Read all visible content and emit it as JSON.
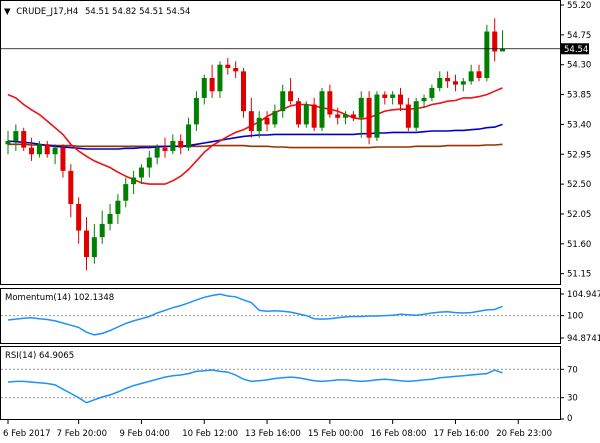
{
  "chart_data": {
    "type": "candlestick",
    "symbol_line": {
      "symbol": "CRUDE_J17,H4",
      "ohlc": "54.51 54.82 54.51 54.54"
    },
    "last_price": "54.54",
    "main": {
      "ylim": [
        51.1,
        55.2
      ],
      "y_ticks": [
        "55.20",
        "54.75",
        "54.30",
        "53.85",
        "53.40",
        "52.95",
        "52.50",
        "52.05",
        "51.60",
        "51.15"
      ],
      "candles": [
        [
          53.1,
          53.3,
          52.95,
          53.15
        ],
        [
          53.15,
          53.4,
          53.0,
          53.3
        ],
        [
          53.3,
          53.35,
          53.0,
          53.05
        ],
        [
          53.05,
          53.2,
          52.85,
          52.95
        ],
        [
          52.95,
          53.15,
          52.9,
          53.1
        ],
        [
          53.1,
          53.15,
          52.9,
          52.95
        ],
        [
          52.95,
          53.1,
          52.8,
          53.05
        ],
        [
          53.05,
          53.1,
          52.6,
          52.7
        ],
        [
          52.7,
          52.8,
          52.0,
          52.2
        ],
        [
          52.2,
          52.3,
          51.6,
          51.8
        ],
        [
          51.8,
          52.0,
          51.2,
          51.4
        ],
        [
          51.4,
          51.9,
          51.3,
          51.7
        ],
        [
          51.7,
          52.1,
          51.6,
          51.9
        ],
        [
          51.9,
          52.2,
          51.8,
          52.05
        ],
        [
          52.05,
          52.35,
          51.9,
          52.25
        ],
        [
          52.25,
          52.6,
          52.15,
          52.5
        ],
        [
          52.5,
          52.7,
          52.35,
          52.6
        ],
        [
          52.6,
          52.8,
          52.5,
          52.75
        ],
        [
          52.75,
          53.0,
          52.6,
          52.9
        ],
        [
          52.9,
          53.1,
          52.8,
          53.05
        ],
        [
          53.05,
          53.2,
          52.9,
          53.0
        ],
        [
          53.0,
          53.25,
          52.95,
          53.15
        ],
        [
          53.15,
          53.25,
          52.95,
          53.05
        ],
        [
          53.05,
          53.5,
          53.0,
          53.4
        ],
        [
          53.4,
          53.9,
          53.3,
          53.8
        ],
        [
          53.8,
          54.15,
          53.7,
          54.1
        ],
        [
          54.1,
          54.3,
          53.8,
          53.9
        ],
        [
          53.9,
          54.35,
          53.8,
          54.3
        ],
        [
          54.3,
          54.4,
          54.15,
          54.25
        ],
        [
          54.25,
          54.35,
          54.1,
          54.2
        ],
        [
          54.2,
          54.25,
          53.5,
          53.6
        ],
        [
          53.6,
          53.8,
          53.2,
          53.3
        ],
        [
          53.3,
          53.6,
          53.2,
          53.5
        ],
        [
          53.5,
          53.6,
          53.3,
          53.4
        ],
        [
          53.4,
          53.7,
          53.35,
          53.6
        ],
        [
          53.6,
          54.0,
          53.5,
          53.9
        ],
        [
          53.9,
          54.1,
          53.7,
          53.75
        ],
        [
          53.75,
          53.8,
          53.35,
          53.4
        ],
        [
          53.4,
          53.75,
          53.35,
          53.7
        ],
        [
          53.7,
          53.8,
          53.3,
          53.35
        ],
        [
          53.35,
          53.95,
          53.3,
          53.9
        ],
        [
          53.9,
          54.0,
          53.5,
          53.55
        ],
        [
          53.55,
          53.65,
          53.4,
          53.5
        ],
        [
          53.5,
          53.6,
          53.4,
          53.55
        ],
        [
          53.55,
          53.6,
          53.45,
          53.5
        ],
        [
          53.5,
          53.9,
          53.2,
          53.8
        ],
        [
          53.8,
          53.9,
          53.1,
          53.2
        ],
        [
          53.2,
          53.9,
          53.15,
          53.85
        ],
        [
          53.85,
          53.9,
          53.7,
          53.8
        ],
        [
          53.8,
          53.9,
          53.7,
          53.85
        ],
        [
          53.85,
          53.95,
          53.6,
          53.7
        ],
        [
          53.7,
          53.8,
          53.3,
          53.35
        ],
        [
          53.35,
          53.8,
          53.3,
          53.75
        ],
        [
          53.75,
          53.85,
          53.65,
          53.8
        ],
        [
          53.8,
          54.0,
          53.75,
          53.95
        ],
        [
          53.95,
          54.2,
          53.9,
          54.1
        ],
        [
          54.1,
          54.2,
          53.95,
          54.05
        ],
        [
          54.05,
          54.15,
          53.9,
          54.0
        ],
        [
          54.0,
          54.1,
          53.9,
          54.05
        ],
        [
          54.05,
          54.3,
          54.0,
          54.2
        ],
        [
          54.2,
          54.3,
          54.05,
          54.1
        ],
        [
          54.1,
          54.9,
          54.05,
          54.8
        ],
        [
          54.8,
          55.0,
          54.35,
          54.5
        ],
        [
          54.5,
          54.82,
          54.51,
          54.54
        ]
      ],
      "ma_red": [
        53.85,
        53.8,
        53.7,
        53.62,
        53.55,
        53.45,
        53.35,
        53.25,
        53.1,
        53.0,
        52.92,
        52.85,
        52.8,
        52.75,
        52.68,
        52.62,
        52.57,
        52.52,
        52.5,
        52.5,
        52.5,
        52.55,
        52.62,
        52.72,
        52.85,
        52.98,
        53.08,
        53.15,
        53.22,
        53.28,
        53.32,
        53.38,
        53.44,
        53.52,
        53.58,
        53.63,
        53.68,
        53.7,
        53.7,
        53.68,
        53.65,
        53.63,
        53.6,
        53.55,
        53.5,
        53.48,
        53.5,
        53.55,
        53.6,
        53.62,
        53.63,
        53.63,
        53.64,
        53.66,
        53.7,
        53.72,
        53.75,
        53.76,
        53.8,
        53.8,
        53.82,
        53.85,
        53.9,
        53.95
      ],
      "ma_blue": [
        53.15,
        53.14,
        53.13,
        53.12,
        53.1,
        53.08,
        53.07,
        53.06,
        53.05,
        53.04,
        53.03,
        53.03,
        53.03,
        53.03,
        53.03,
        53.04,
        53.04,
        53.05,
        53.05,
        53.06,
        53.07,
        53.07,
        53.07,
        53.08,
        53.1,
        53.12,
        53.14,
        53.16,
        53.18,
        53.2,
        53.22,
        53.23,
        53.24,
        53.24,
        53.25,
        53.25,
        53.25,
        53.25,
        53.25,
        53.25,
        53.25,
        53.25,
        53.25,
        53.25,
        53.25,
        53.26,
        53.26,
        53.27,
        53.27,
        53.28,
        53.28,
        53.28,
        53.28,
        53.29,
        53.3,
        53.3,
        53.3,
        53.31,
        53.31,
        53.32,
        53.33,
        53.35,
        53.36,
        53.4
      ],
      "ma_brown": [
        53.1,
        53.1,
        53.1,
        53.09,
        53.09,
        53.09,
        53.08,
        53.08,
        53.08,
        53.07,
        53.07,
        53.07,
        53.07,
        53.07,
        53.07,
        53.07,
        53.07,
        53.07,
        53.07,
        53.07,
        53.07,
        53.07,
        53.07,
        53.07,
        53.07,
        53.07,
        53.08,
        53.08,
        53.08,
        53.08,
        53.08,
        53.07,
        53.07,
        53.07,
        53.06,
        53.06,
        53.05,
        53.05,
        53.05,
        53.05,
        53.05,
        53.05,
        53.05,
        53.05,
        53.05,
        53.05,
        53.05,
        53.06,
        53.06,
        53.06,
        53.06,
        53.06,
        53.07,
        53.07,
        53.07,
        53.07,
        53.08,
        53.08,
        53.08,
        53.08,
        53.08,
        53.09,
        53.09,
        53.1
      ]
    },
    "x_labels": [
      {
        "label": "6 Feb 2017",
        "index": 0
      },
      {
        "label": "7 Feb 20:00",
        "index": 9
      },
      {
        "label": "9 Feb 04:00",
        "index": 17
      },
      {
        "label": "10 Feb 12:00",
        "index": 25
      },
      {
        "label": "13 Feb 16:00",
        "index": 33
      },
      {
        "label": "15 Feb 00:00",
        "index": 41
      },
      {
        "label": "16 Feb 08:00",
        "index": 49
      },
      {
        "label": "17 Feb 16:00",
        "index": 57
      },
      {
        "label": "20 Feb 23:00",
        "index": 65
      }
    ],
    "momentum": {
      "label": "Momentum(14) 102.1348",
      "ylim": [
        94.8741,
        104.947
      ],
      "y_ticks": [
        "104.947",
        "100",
        "94.8741"
      ],
      "level": 100,
      "values": [
        99.0,
        99.2,
        99.4,
        99.5,
        99.3,
        99.1,
        98.8,
        98.3,
        97.8,
        97.3,
        96.2,
        95.6,
        95.9,
        96.6,
        97.4,
        98.2,
        98.8,
        99.3,
        99.8,
        100.6,
        101.2,
        101.8,
        102.3,
        102.9,
        103.6,
        104.2,
        104.6,
        104.9,
        104.5,
        104.3,
        103.6,
        103.0,
        101.2,
        101.0,
        101.1,
        101.0,
        100.8,
        100.4,
        100.0,
        99.3,
        99.2,
        99.3,
        99.5,
        99.7,
        99.8,
        99.8,
        99.9,
        99.9,
        100.0,
        100.1,
        100.3,
        100.2,
        100.1,
        100.3,
        100.6,
        100.8,
        100.9,
        100.7,
        100.6,
        100.7,
        101.0,
        101.3,
        101.4,
        102.1348
      ]
    },
    "rsi": {
      "label": "RSI(14) 64.9065",
      "ylim": [
        0,
        100
      ],
      "y_ticks": [
        "70",
        "30",
        "0"
      ],
      "levels": [
        70,
        30
      ],
      "values": [
        52,
        53,
        53,
        52,
        51,
        50,
        48,
        42,
        36,
        30,
        23,
        27,
        31,
        34,
        38,
        43,
        47,
        50,
        53,
        56,
        59,
        61,
        62,
        64,
        67,
        68,
        69,
        67,
        66,
        62,
        56,
        53,
        54,
        55,
        57,
        58,
        59,
        58,
        56,
        54,
        53,
        54,
        55,
        55,
        54,
        53,
        54,
        55,
        56,
        55,
        54,
        53,
        54,
        55,
        56,
        58,
        59,
        60,
        61,
        62,
        63,
        64,
        69,
        64.9065
      ]
    }
  }
}
